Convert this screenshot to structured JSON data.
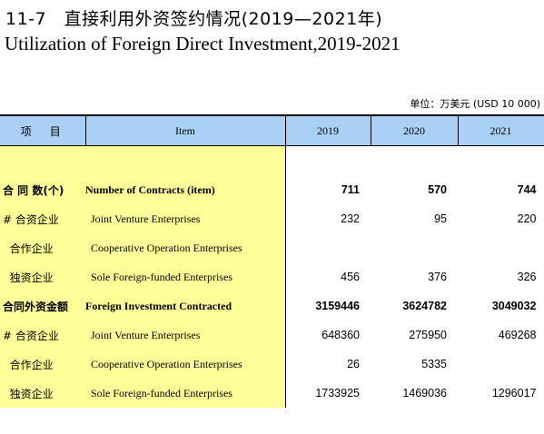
{
  "header": {
    "title_cn": "11-7　直接利用外资签约情况(2019—2021年)",
    "title_en": "Utilization of Foreign Direct Investment,2019-2021",
    "unit": "单位：万美元 (USD 10 000)"
  },
  "columns": {
    "item_cn": "项　目",
    "item_en": "Item",
    "years": [
      "2019",
      "2020",
      "2021"
    ]
  },
  "rows": [
    {
      "cn": "合 同 数(个)",
      "en": "Number of Contracts (item)",
      "values": [
        "711",
        "570",
        "744"
      ],
      "bold": true
    },
    {
      "cn": "# 合资企业",
      "en": "Joint Venture Enterprises",
      "values": [
        "232",
        "95",
        "220"
      ],
      "bold": false
    },
    {
      "cn": "  合作企业",
      "en": "Cooperative Operation Enterprises",
      "values": [
        "",
        "",
        ""
      ],
      "bold": false
    },
    {
      "cn": "  独资企业",
      "en": "Sole Foreign-funded Enterprises",
      "values": [
        "456",
        "376",
        "326"
      ],
      "bold": false
    },
    {
      "cn": "合同外资金额",
      "en": "Foreign Investment Contracted",
      "values": [
        "3159446",
        "3624782",
        "3049032"
      ],
      "bold": true
    },
    {
      "cn": "# 合资企业",
      "en": "Joint Venture Enterprises",
      "values": [
        "648360",
        "275950",
        "469268"
      ],
      "bold": false
    },
    {
      "cn": "  合作企业",
      "en": "Cooperative Operation Enterprises",
      "values": [
        "26",
        "5335",
        ""
      ],
      "bold": false
    },
    {
      "cn": "  独资企业",
      "en": "Sole Foreign-funded Enterprises",
      "values": [
        "1733925",
        "1469036",
        "1296017"
      ],
      "bold": false
    }
  ]
}
